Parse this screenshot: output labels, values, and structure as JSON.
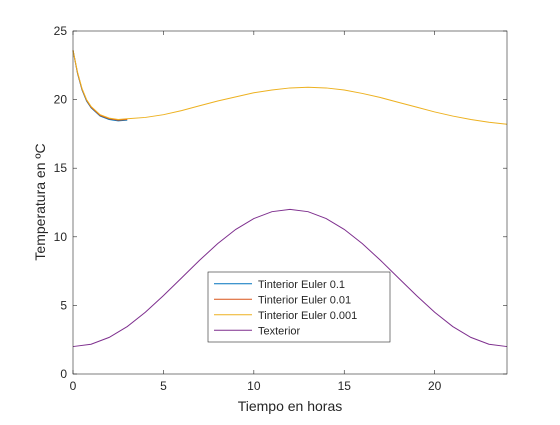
{
  "chart_data": {
    "type": "line",
    "title": "",
    "xlabel": "Tiempo en horas",
    "ylabel": "Temperatura en ºC",
    "xlim": [
      0,
      24
    ],
    "ylim": [
      0,
      25
    ],
    "xticks": [
      0,
      5,
      10,
      15,
      20
    ],
    "yticks": [
      0,
      5,
      10,
      15,
      20,
      25
    ],
    "grid": false,
    "legend_position": "bottom-center",
    "series": [
      {
        "name": "Tinterior Euler 0.1",
        "color": "#0072BD",
        "x": [
          0,
          0.25,
          0.5,
          0.75,
          1,
          1.5,
          2,
          2.5,
          3
        ],
        "y": [
          23.6,
          21.9,
          20.7,
          19.9,
          19.4,
          18.8,
          18.55,
          18.45,
          18.5
        ]
      },
      {
        "name": "Tinterior Euler 0.01",
        "color": "#D95319",
        "x": [
          0,
          0.25,
          0.5,
          0.75,
          1,
          1.5,
          2,
          2.5,
          3
        ],
        "y": [
          23.6,
          21.95,
          20.75,
          19.95,
          19.45,
          18.85,
          18.6,
          18.5,
          18.55
        ]
      },
      {
        "name": "Tinterior Euler 0.001",
        "color": "#EDB120",
        "x": [
          0,
          0.25,
          0.5,
          0.75,
          1,
          1.5,
          2,
          2.5,
          3,
          4,
          5,
          6,
          7,
          8,
          9,
          10,
          11,
          12,
          13,
          14,
          15,
          16,
          17,
          18,
          19,
          20,
          21,
          22,
          23,
          24
        ],
        "y": [
          23.6,
          22.0,
          20.8,
          20.0,
          19.5,
          18.9,
          18.65,
          18.55,
          18.6,
          18.7,
          18.9,
          19.2,
          19.55,
          19.9,
          20.2,
          20.5,
          20.7,
          20.85,
          20.9,
          20.85,
          20.7,
          20.45,
          20.15,
          19.8,
          19.45,
          19.1,
          18.8,
          18.55,
          18.35,
          18.2
        ]
      },
      {
        "name": "Texterior",
        "color": "#7E2F8E",
        "x": [
          0,
          1,
          2,
          3,
          4,
          5,
          6,
          7,
          8,
          9,
          10,
          11,
          12,
          13,
          14,
          15,
          16,
          17,
          18,
          19,
          20,
          21,
          22,
          23,
          24
        ],
        "y": [
          2.0,
          2.17,
          2.67,
          3.46,
          4.5,
          5.71,
          7.0,
          8.29,
          9.5,
          10.54,
          11.33,
          11.83,
          12.0,
          11.83,
          11.33,
          10.54,
          9.5,
          8.29,
          7.0,
          5.71,
          4.5,
          3.46,
          2.67,
          2.17,
          2.0
        ]
      }
    ]
  }
}
